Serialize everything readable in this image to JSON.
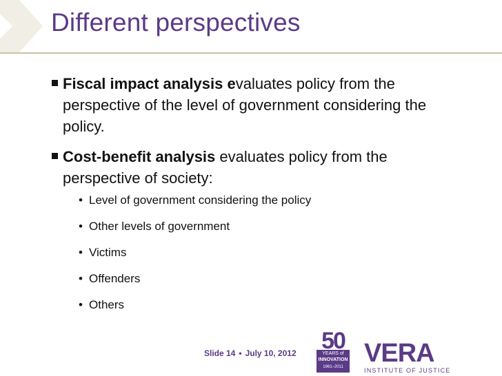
{
  "slide": {
    "title": "Different perspectives",
    "bullets": [
      {
        "bold": "Fiscal impact analysis e",
        "text": "valuates policy from the perspective of the level of government considering the policy."
      },
      {
        "bold": "Cost-benefit analysis",
        "text": " evaluates policy from the perspective of society:"
      }
    ],
    "sub_bullets": [
      "Level of government considering the policy",
      "Other levels of government",
      "Victims",
      "Offenders",
      "Others"
    ],
    "sub_marker": "•"
  },
  "footer": {
    "slide_label": "Slide 14",
    "separator": "•",
    "date": "July 10, 2012"
  },
  "badge": {
    "number": "50",
    "years": "YEARS of",
    "innovation": "INNOVATION",
    "dates": "1961–2011"
  },
  "logo": {
    "word": "VERA",
    "subtitle": "INSTITUTE OF JUSTICE"
  },
  "colors": {
    "accent": "#5b3a86",
    "rule": "#c9c3a6",
    "text": "#111111"
  }
}
